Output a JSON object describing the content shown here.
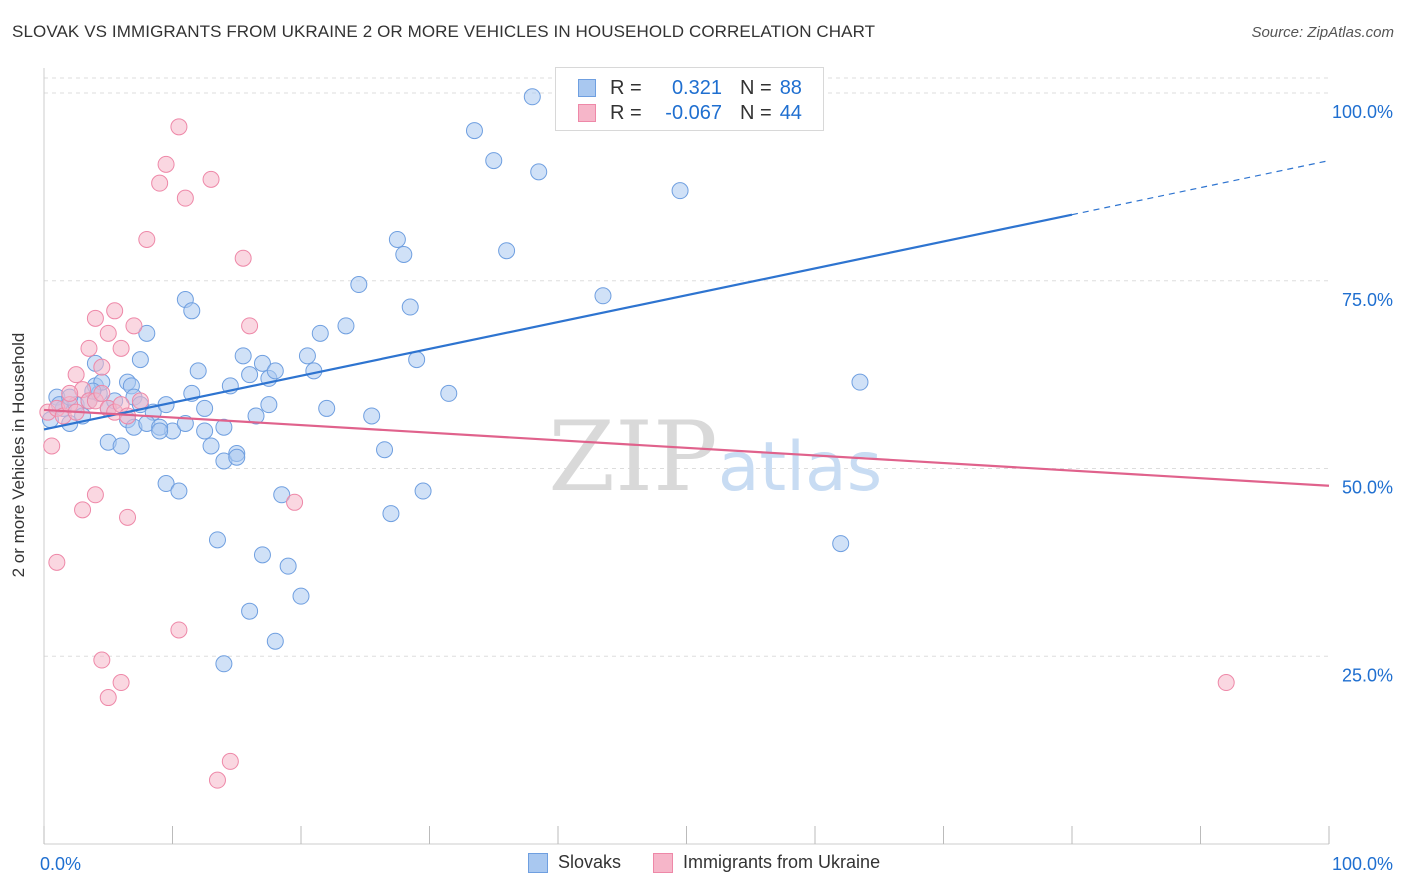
{
  "title": "SLOVAK VS IMMIGRANTS FROM UKRAINE 2 OR MORE VEHICLES IN HOUSEHOLD CORRELATION CHART",
  "source": "Source: ZipAtlas.com",
  "watermark": {
    "zip": "ZIP",
    "atlas": "atlas"
  },
  "colors": {
    "blue_fill": "#a9c8f0",
    "blue_stroke": "#6f9fe0",
    "blue_line": "#2e74d0",
    "pink_fill": "#f6b6c9",
    "pink_stroke": "#ee88a8",
    "pink_line": "#e0628c",
    "value_text": "#1f6fd0",
    "grid": "#dddddd"
  },
  "legend": {
    "rows": [
      {
        "r_label": "R =",
        "r_value": "0.321",
        "n_label": "N =",
        "n_value": "88"
      },
      {
        "r_label": "R =",
        "r_value": "-0.067",
        "n_label": "N =",
        "n_value": "44"
      }
    ]
  },
  "bottom_legend": {
    "series1": "Slovaks",
    "series2": "Immigrants from Ukraine"
  },
  "chart_data": {
    "type": "scatter",
    "title": "SLOVAK VS IMMIGRANTS FROM UKRAINE 2 OR MORE VEHICLES IN HOUSEHOLD CORRELATION CHART",
    "xlabel": "",
    "ylabel": "2 or more Vehicles in Household",
    "xlim": [
      0,
      100
    ],
    "ylim": [
      0,
      102
    ],
    "x_ticks": [
      "0.0%",
      "100.0%"
    ],
    "y_ticks": [
      {
        "value": 100,
        "label": "100.0%"
      },
      {
        "value": 75,
        "label": "75.0%"
      },
      {
        "value": 50,
        "label": "50.0%"
      },
      {
        "value": 25,
        "label": "25.0%"
      }
    ],
    "grid": true,
    "series": [
      {
        "name": "Slovaks",
        "color": "#a9c8f0",
        "trend": {
          "x0": 0,
          "y0": 55.2,
          "x1": 80,
          "y1": 83.8,
          "dash_to_x": 100,
          "dash_to_y": 91.0
        },
        "points": [
          [
            0.5,
            56.5
          ],
          [
            1.0,
            59.5
          ],
          [
            1.5,
            58.0
          ],
          [
            2.0,
            56.0
          ],
          [
            2.5,
            58.5
          ],
          [
            3.0,
            57.0
          ],
          [
            1.2,
            58.5
          ],
          [
            3.5,
            59.0
          ],
          [
            4.0,
            61.0
          ],
          [
            4.3,
            60.0
          ],
          [
            4.5,
            61.5
          ],
          [
            6.5,
            61.5
          ],
          [
            6.8,
            61.0
          ],
          [
            5.0,
            58.0
          ],
          [
            2.0,
            59.5
          ],
          [
            3.8,
            60.3
          ],
          [
            7.0,
            59.5
          ],
          [
            7.5,
            58.5
          ],
          [
            8.5,
            57.5
          ],
          [
            9.5,
            58.5
          ],
          [
            10.0,
            55.0
          ],
          [
            5.5,
            59.0
          ],
          [
            6.5,
            56.5
          ],
          [
            7.0,
            55.5
          ],
          [
            8.0,
            56.0
          ],
          [
            9.0,
            55.5
          ],
          [
            11.0,
            56.0
          ],
          [
            11.5,
            60.0
          ],
          [
            12.0,
            63.0
          ],
          [
            12.5,
            55.0
          ],
          [
            13.0,
            53.0
          ],
          [
            14.0,
            51.0
          ],
          [
            14.5,
            61.0
          ],
          [
            15.0,
            52.0
          ],
          [
            15.5,
            65.0
          ],
          [
            16.0,
            62.5
          ],
          [
            16.5,
            57.0
          ],
          [
            17.0,
            64.0
          ],
          [
            17.5,
            62.0
          ],
          [
            18.0,
            63.0
          ],
          [
            18.5,
            46.5
          ],
          [
            9.5,
            48.0
          ],
          [
            10.5,
            47.0
          ],
          [
            11.0,
            72.5
          ],
          [
            11.5,
            71.0
          ],
          [
            8.0,
            68.0
          ],
          [
            7.5,
            64.5
          ],
          [
            4.0,
            64.0
          ],
          [
            5.0,
            53.5
          ],
          [
            6.0,
            53.0
          ],
          [
            13.5,
            40.5
          ],
          [
            14.0,
            24.0
          ],
          [
            16.0,
            31.0
          ],
          [
            17.0,
            38.5
          ],
          [
            18.0,
            27.0
          ],
          [
            20.0,
            33.0
          ],
          [
            19.0,
            37.0
          ],
          [
            20.5,
            65.0
          ],
          [
            21.0,
            63.0
          ],
          [
            21.5,
            68.0
          ],
          [
            22.0,
            58.0
          ],
          [
            23.5,
            69.0
          ],
          [
            24.5,
            74.5
          ],
          [
            25.5,
            57.0
          ],
          [
            26.5,
            52.5
          ],
          [
            27.0,
            44.0
          ],
          [
            27.5,
            80.5
          ],
          [
            28.0,
            78.5
          ],
          [
            28.5,
            71.5
          ],
          [
            29.0,
            64.5
          ],
          [
            29.5,
            47.0
          ],
          [
            31.5,
            60.0
          ],
          [
            33.5,
            95.0
          ],
          [
            35.0,
            91.0
          ],
          [
            36.0,
            79.0
          ],
          [
            38.0,
            99.5
          ],
          [
            38.5,
            89.5
          ],
          [
            42.5,
            99.5
          ],
          [
            43.5,
            73.0
          ],
          [
            48.0,
            99.5
          ],
          [
            49.5,
            87.0
          ],
          [
            62.0,
            40.0
          ],
          [
            63.5,
            61.5
          ],
          [
            14.0,
            55.5
          ],
          [
            9.0,
            55.0
          ],
          [
            12.5,
            58.0
          ],
          [
            15.0,
            51.5
          ],
          [
            17.5,
            58.5
          ]
        ]
      },
      {
        "name": "Immigrants from Ukraine",
        "color": "#f6b6c9",
        "trend": {
          "x0": 0,
          "y0": 57.8,
          "x1": 100,
          "y1": 47.7
        },
        "points": [
          [
            0.3,
            57.5
          ],
          [
            0.6,
            53.0
          ],
          [
            1.0,
            58.0
          ],
          [
            1.5,
            57.0
          ],
          [
            2.0,
            58.5
          ],
          [
            2.5,
            57.5
          ],
          [
            3.0,
            60.5
          ],
          [
            3.5,
            59.0
          ],
          [
            4.0,
            59.0
          ],
          [
            4.5,
            60.0
          ],
          [
            5.0,
            58.0
          ],
          [
            5.5,
            57.5
          ],
          [
            6.0,
            58.5
          ],
          [
            6.5,
            57.0
          ],
          [
            2.5,
            62.5
          ],
          [
            3.5,
            66.0
          ],
          [
            4.0,
            70.0
          ],
          [
            4.5,
            63.5
          ],
          [
            5.0,
            68.0
          ],
          [
            5.5,
            71.0
          ],
          [
            6.0,
            66.0
          ],
          [
            7.0,
            69.0
          ],
          [
            8.0,
            80.5
          ],
          [
            9.0,
            88.0
          ],
          [
            9.5,
            90.5
          ],
          [
            10.5,
            95.5
          ],
          [
            11.0,
            86.0
          ],
          [
            13.0,
            88.5
          ],
          [
            15.5,
            78.0
          ],
          [
            16.0,
            69.0
          ],
          [
            19.5,
            45.5
          ],
          [
            6.5,
            43.5
          ],
          [
            4.0,
            46.5
          ],
          [
            3.0,
            44.5
          ],
          [
            1.0,
            37.5
          ],
          [
            4.5,
            24.5
          ],
          [
            5.0,
            19.5
          ],
          [
            6.0,
            21.5
          ],
          [
            10.5,
            28.5
          ],
          [
            13.5,
            8.5
          ],
          [
            14.5,
            11.0
          ],
          [
            92.0,
            21.5
          ],
          [
            2.0,
            60.0
          ],
          [
            7.5,
            59.0
          ]
        ]
      }
    ]
  }
}
